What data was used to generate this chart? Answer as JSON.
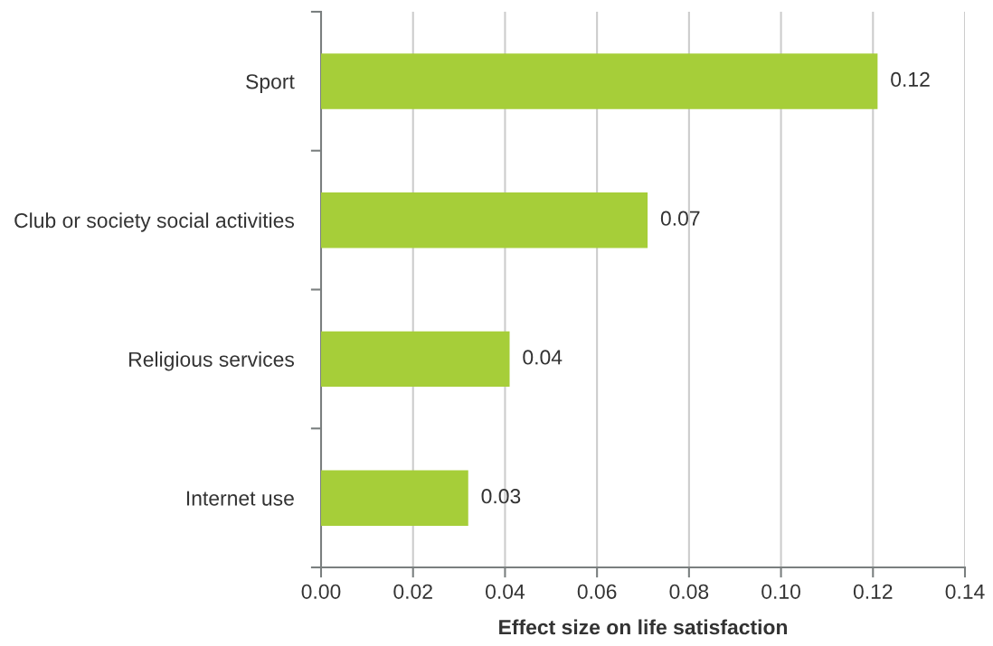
{
  "chart_data": {
    "type": "bar",
    "orientation": "horizontal",
    "xlabel": "Effect size on life satisfaction",
    "categories": [
      "Sport",
      "Club or society social activities",
      "Religious services",
      "Internet use"
    ],
    "values": [
      0.121,
      0.071,
      0.041,
      0.032
    ],
    "value_labels": [
      "0.12",
      "0.07",
      "0.04",
      "0.03"
    ],
    "color": "#a6ce39",
    "xlim": [
      0,
      0.14
    ],
    "xticks": [
      {
        "value": 0,
        "label": "0.00"
      },
      {
        "value": 0.02,
        "label": "0.02"
      },
      {
        "value": 0.04,
        "label": "0.04"
      },
      {
        "value": 0.06,
        "label": "0.06"
      },
      {
        "value": 0.08,
        "label": "0.08"
      },
      {
        "value": 0.1,
        "label": "0.10"
      },
      {
        "value": 0.12,
        "label": "0.12"
      },
      {
        "value": 0.14,
        "label": "0.14"
      }
    ],
    "grid": "x"
  }
}
